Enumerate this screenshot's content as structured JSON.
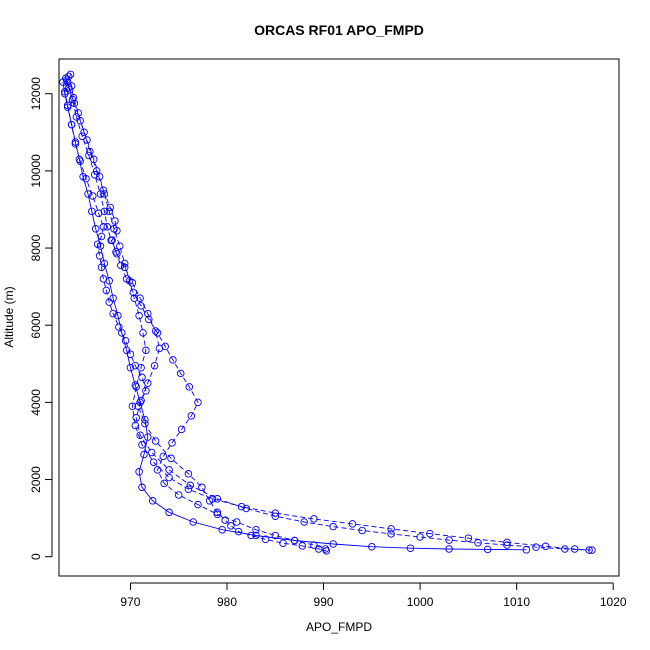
{
  "chart_data": {
    "type": "scatter",
    "title": "ORCAS RF01 APO_FMPD",
    "xlabel": "APO_FMPD",
    "ylabel": "Altitude (m)",
    "xlim": [
      962.6,
      1020.6
    ],
    "ylim": [
      -500,
      12900
    ],
    "xticks": [
      970,
      980,
      990,
      1000,
      1010,
      1020
    ],
    "yticks": [
      0,
      2000,
      4000,
      6000,
      8000,
      10000,
      12000
    ],
    "grid": false,
    "line_color": "#0000ff",
    "marker": "open-circle",
    "series": [
      {
        "line_style": "dashed",
        "x": [
          963.8,
          963.5,
          963.2,
          963.5,
          963.9,
          964.3,
          964.8,
          965.4,
          966.1,
          966.7,
          967.2,
          967.0,
          966.6,
          966.8,
          967.0,
          967.2,
          967.5,
          967.8,
          968.2,
          968.8,
          969.5,
          970.0,
          970.5,
          971.2,
          971.6,
          970.8,
          971.5,
          972.6,
          974.2,
          976.0,
          977.4,
          978.2,
          979.0,
          979.8,
          980.4,
          981.2,
          982.5,
          984.0,
          985.8,
          987.8,
          989.5,
          990.3
        ],
        "y": [
          12500,
          12300,
          12050,
          11700,
          11200,
          10700,
          10250,
          9800,
          9350,
          8900,
          8550,
          8300,
          8100,
          7800,
          7500,
          7200,
          6900,
          6600,
          6300,
          5950,
          5600,
          5250,
          4950,
          4650,
          4300,
          3900,
          3450,
          3000,
          2550,
          2150,
          1800,
          1450,
          1150,
          950,
          800,
          650,
          550,
          450,
          350,
          280,
          200,
          150
        ]
      },
      {
        "line_style": "dashed",
        "x": [
          963.6,
          963.9,
          964.1,
          964.6,
          965.2,
          965.8,
          966.5,
          967.2,
          967.9,
          968.4,
          968.6,
          968.1,
          968.5,
          969.0,
          969.6,
          970.3,
          971.1,
          971.9,
          972.8,
          973.6,
          974.4,
          975.2,
          976.1,
          977.0,
          976.3,
          975.3,
          974.3,
          973.4,
          972.8,
          973.5,
          975.0,
          977.0,
          979.0,
          981.0,
          983.0,
          985.0,
          987.0,
          989.0,
          990.2
        ],
        "y": [
          12450,
          12200,
          11900,
          11500,
          11000,
          10500,
          10000,
          9500,
          9050,
          8700,
          8450,
          8200,
          7900,
          7550,
          7200,
          6850,
          6500,
          6150,
          5800,
          5450,
          5100,
          4750,
          4400,
          4000,
          3650,
          3300,
          2950,
          2600,
          2250,
          1900,
          1600,
          1350,
          1100,
          900,
          700,
          550,
          420,
          300,
          200
        ]
      },
      {
        "line_style": "dashed",
        "x": [
          963.3,
          963.6,
          964.0,
          964.4,
          965.0,
          965.7,
          966.3,
          966.9,
          967.3,
          967.6,
          968.0,
          968.6,
          969.4,
          970.2,
          971.0,
          971.8,
          972.6,
          973.0,
          972.5,
          971.8,
          971.1,
          970.6,
          971.0,
          972.2,
          974.0,
          976.2,
          979.0,
          982.0,
          985.0,
          988.0,
          991.0,
          994.0,
          997.0,
          1000.0,
          1003.0,
          1006.0,
          1009.0,
          1012.0,
          1015.0,
          1017.5
        ],
        "y": [
          12400,
          12150,
          11850,
          11400,
          10900,
          10400,
          9900,
          9400,
          8950,
          8550,
          8200,
          7850,
          7500,
          7100,
          6700,
          6300,
          5850,
          5400,
          4950,
          4500,
          4050,
          3600,
          3150,
          2700,
          2250,
          1850,
          1500,
          1250,
          1050,
          900,
          780,
          680,
          590,
          510,
          430,
          360,
          300,
          250,
          200,
          170
        ]
      },
      {
        "line_style": "dashed",
        "x": [
          963.4,
          963.7,
          964.2,
          964.8,
          965.5,
          966.2,
          966.8,
          967.3,
          967.8,
          968.3,
          968.9,
          969.4,
          969.9,
          970.4,
          970.9,
          971.3,
          971.6,
          971.1,
          970.6,
          970.2,
          970.5,
          971.2,
          972.4,
          974.0,
          976.0,
          978.5,
          981.5,
          985.0,
          989.0,
          993.0,
          997.0,
          1001.0,
          1005.0,
          1009.0,
          1013.0,
          1016.0,
          1017.8
        ],
        "y": [
          12350,
          12100,
          11750,
          11300,
          10800,
          10300,
          9850,
          9400,
          8950,
          8500,
          8050,
          7600,
          7150,
          6700,
          6250,
          5800,
          5350,
          4900,
          4400,
          3900,
          3400,
          2900,
          2450,
          2050,
          1750,
          1500,
          1300,
          1130,
          980,
          850,
          720,
          600,
          480,
          370,
          270,
          200,
          170
        ]
      },
      {
        "line_style": "solid",
        "x": [
          963.0,
          963.2,
          963.5,
          963.9,
          964.3,
          964.7,
          965.1,
          965.6,
          966.0,
          966.4,
          966.9,
          967.3,
          967.8,
          968.2,
          968.7,
          969.1,
          969.6,
          970.0,
          970.5,
          971.0,
          971.5,
          971.8,
          971.4,
          970.9,
          971.2,
          972.3,
          974.0,
          976.5,
          979.5,
          983.0,
          987.0,
          991.0,
          995.0,
          999.0,
          1003.0,
          1007.0,
          1011.0
        ],
        "y": [
          12300,
          12000,
          11650,
          11200,
          10750,
          10300,
          9850,
          9400,
          8950,
          8500,
          8050,
          7600,
          7150,
          6700,
          6250,
          5800,
          5350,
          4900,
          4450,
          4000,
          3550,
          3100,
          2650,
          2200,
          1800,
          1450,
          1150,
          900,
          700,
          550,
          420,
          330,
          260,
          220,
          200,
          190,
          180
        ]
      }
    ]
  }
}
